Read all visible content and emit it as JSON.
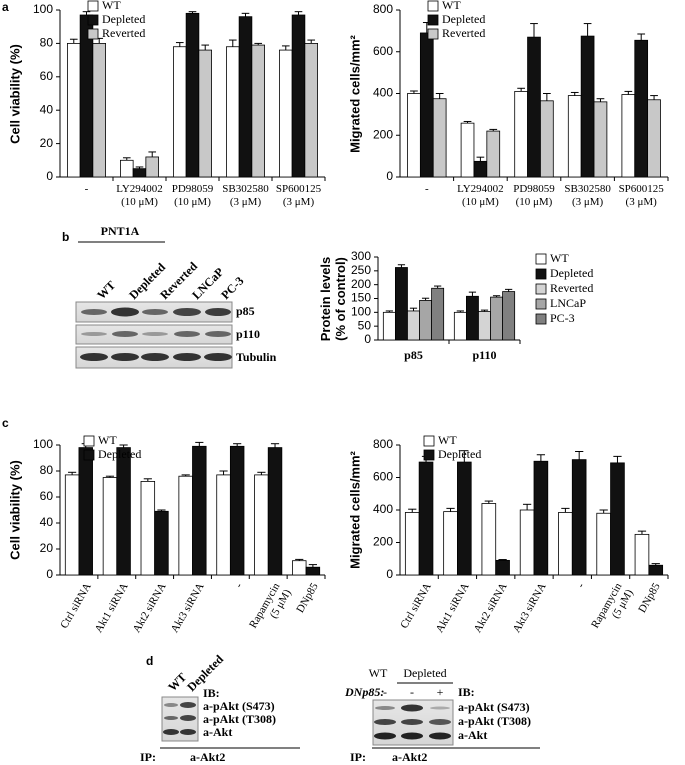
{
  "panels": [
    "a",
    "b",
    "c",
    "d"
  ],
  "blots": {
    "b": {
      "cell_line": "PNT1A",
      "lanes": [
        "WT",
        "Depleted",
        "Reverted",
        "LNCaP",
        "PC-3"
      ],
      "bands": [
        "p85",
        "p110",
        "Tubulin"
      ]
    },
    "d_left": {
      "lanes": [
        "WT",
        "Depleted"
      ],
      "ib": "IB:",
      "bands": [
        "a-pAkt (S473)",
        "a-pAkt (T308)",
        "a-Akt"
      ],
      "ip": "IP:",
      "ip_target": "a-Akt2"
    },
    "d_right": {
      "lanes": [
        "WT",
        "Depleted"
      ],
      "dn_label": "DNp85:",
      "dn_marks": [
        "-",
        "-",
        "+"
      ],
      "ib": "IB:",
      "bands": [
        "a-pAkt (S473)",
        "a-pAkt (T308)",
        "a-Akt"
      ],
      "ip": "IP:",
      "ip_target": "a-Akt2"
    }
  },
  "chart_data": [
    {
      "type": "bar",
      "y_label": "Cell viability (%)",
      "legend": "upper left",
      "categories": [
        "-",
        "LY294002\n(10 μM)",
        "PD98059\n(10 μM)",
        "SB302580\n(3 μM)",
        "SP600125\n(3 μM)"
      ],
      "series": [
        {
          "name": "WT",
          "color": "#ffffff",
          "values": [
            80,
            10,
            78,
            78,
            76
          ],
          "errors": [
            2.5,
            1.5,
            2.5,
            4,
            2.5
          ]
        },
        {
          "name": "Depleted",
          "color": "#111111",
          "values": [
            97,
            5,
            98,
            96,
            97
          ],
          "errors": [
            2,
            1,
            1,
            2,
            2
          ]
        },
        {
          "name": "Reverted",
          "color": "#c8c8c8",
          "values": [
            80,
            12,
            76,
            79,
            80
          ],
          "errors": [
            3,
            3,
            3,
            1,
            2
          ]
        }
      ],
      "ylim": [
        0,
        100
      ],
      "yticks": [
        0,
        20,
        40,
        60,
        80,
        100
      ]
    },
    {
      "type": "bar",
      "y_label": "Migrated cells/mm²",
      "legend": "upper left",
      "categories": [
        "-",
        "LY294002\n(10 μM)",
        "PD98059\n(10 μM)",
        "SB302580\n(3 μM)",
        "SP600125\n(3 μM)"
      ],
      "series": [
        {
          "name": "WT",
          "color": "#ffffff",
          "values": [
            400,
            258,
            410,
            390,
            395
          ],
          "errors": [
            12,
            8,
            15,
            15,
            15
          ]
        },
        {
          "name": "Depleted",
          "color": "#111111",
          "values": [
            690,
            75,
            670,
            675,
            655
          ],
          "errors": [
            50,
            20,
            65,
            60,
            30
          ]
        },
        {
          "name": "Reverted",
          "color": "#c8c8c8",
          "values": [
            375,
            220,
            365,
            360,
            370
          ],
          "errors": [
            25,
            8,
            35,
            15,
            20
          ]
        }
      ],
      "ylim": [
        0,
        800
      ],
      "yticks": [
        0,
        200,
        400,
        600,
        800
      ]
    },
    {
      "type": "bar",
      "y_label": "Protein levels\n(% of control)",
      "legend": "right",
      "categories": [
        "p85",
        "p110"
      ],
      "series": [
        {
          "name": "WT",
          "color": "#ffffff",
          "values": [
            100,
            100
          ],
          "errors": [
            5,
            5
          ]
        },
        {
          "name": "Depleted",
          "color": "#111111",
          "values": [
            262,
            158
          ],
          "errors": [
            10,
            15
          ]
        },
        {
          "name": "Reverted",
          "color": "#d4d4d4",
          "values": [
            105,
            103
          ],
          "errors": [
            10,
            5
          ]
        },
        {
          "name": "LNCaP",
          "color": "#a6a6a6",
          "values": [
            143,
            155
          ],
          "errors": [
            8,
            5
          ]
        },
        {
          "name": "PC-3",
          "color": "#808080",
          "values": [
            187,
            175
          ],
          "errors": [
            8,
            8
          ]
        }
      ],
      "ylim": [
        0,
        300
      ],
      "yticks": [
        0,
        50,
        100,
        150,
        200,
        250,
        300
      ]
    },
    {
      "type": "bar",
      "y_label": "Cell viability (%)",
      "legend": "upper left",
      "categories": [
        "Ctrl siRNA",
        "Akt1 siRNA",
        "Akt2 siRNA",
        "Akt3 siRNA",
        "-",
        "Rapamycin\n(5 μM)",
        "DNp85"
      ],
      "series": [
        {
          "name": "WT",
          "color": "#ffffff",
          "values": [
            77,
            75,
            72,
            76,
            77,
            77,
            11
          ],
          "errors": [
            2,
            1,
            2,
            1,
            3,
            2,
            1
          ]
        },
        {
          "name": "Depleted",
          "color": "#111111",
          "values": [
            98,
            98,
            49,
            99,
            99,
            98,
            6
          ],
          "errors": [
            3,
            2,
            1,
            3,
            2,
            3,
            2
          ]
        }
      ],
      "ylim": [
        0,
        100
      ],
      "yticks": [
        0,
        20,
        40,
        60,
        80,
        100
      ]
    },
    {
      "type": "bar",
      "y_label": "Migrated cells/mm²",
      "legend": "upper left",
      "categories": [
        "Ctrl siRNA",
        "Akt1 siRNA",
        "Akt2 siRNA",
        "Akt3 siRNA",
        "-",
        "Rapamycin\n(5 μM)",
        "DNp85"
      ],
      "series": [
        {
          "name": "WT",
          "color": "#ffffff",
          "values": [
            385,
            390,
            440,
            400,
            385,
            380,
            250
          ],
          "errors": [
            20,
            20,
            15,
            35,
            25,
            20,
            20
          ]
        },
        {
          "name": "Depleted",
          "color": "#111111",
          "values": [
            695,
            695,
            90,
            700,
            710,
            690,
            60
          ],
          "errors": [
            35,
            70,
            5,
            40,
            50,
            40,
            10
          ]
        }
      ],
      "ylim": [
        0,
        800
      ],
      "yticks": [
        0,
        200,
        400,
        600,
        800
      ]
    }
  ]
}
